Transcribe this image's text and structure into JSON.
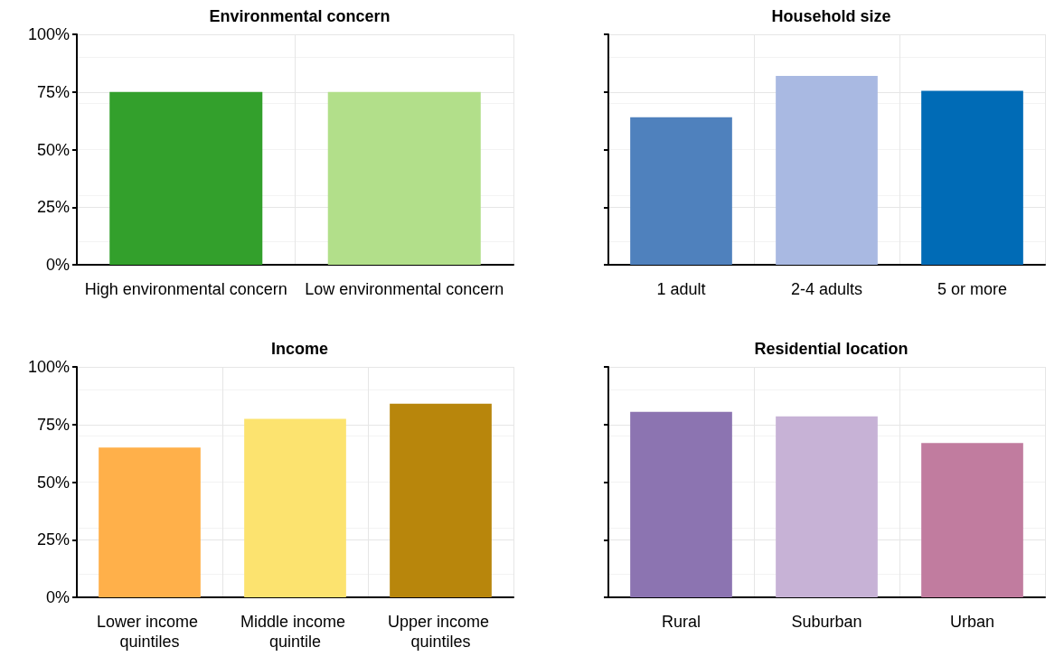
{
  "chart_data": [
    {
      "type": "bar",
      "title": "Environmental concern",
      "categories": [
        "High environmental concern",
        "Low environmental concern"
      ],
      "values": [
        75,
        75
      ],
      "colors": [
        "#33a02c",
        "#b2df8a"
      ],
      "ylim": [
        0,
        100
      ],
      "yticks": [
        {
          "value": 0,
          "label": "0%"
        },
        {
          "value": 25,
          "label": "25%"
        },
        {
          "value": 50,
          "label": "50%"
        },
        {
          "value": 75,
          "label": "75%"
        },
        {
          "value": 100,
          "label": "100%"
        }
      ],
      "grid": true
    },
    {
      "type": "bar",
      "title": "Household size",
      "categories": [
        "1 adult",
        "2-4 adults",
        "5 or more"
      ],
      "values": [
        64,
        82,
        75.5
      ],
      "colors": [
        "#4f81bd",
        "#a9b9e2",
        "#006bb6"
      ],
      "ylim": [
        0,
        100
      ],
      "yticks": [
        {
          "value": 0,
          "label": "0%"
        },
        {
          "value": 25,
          "label": "25%"
        },
        {
          "value": 50,
          "label": "50%"
        },
        {
          "value": 75,
          "label": "75%"
        },
        {
          "value": 100,
          "label": "100%"
        }
      ],
      "grid": true,
      "tick_labels": "x"
    },
    {
      "type": "bar",
      "title": "Income",
      "categories": [
        "Lower income quintiles",
        "Middle income quintile",
        "Upper income quintiles"
      ],
      "values": [
        65,
        77.5,
        84
      ],
      "colors": [
        "#ffb04a",
        "#fce36f",
        "#b8860c"
      ],
      "ylim": [
        0,
        100
      ],
      "yticks": [
        {
          "value": 0,
          "label": "0%"
        },
        {
          "value": 25,
          "label": "25%"
        },
        {
          "value": 50,
          "label": "50%"
        },
        {
          "value": 75,
          "label": "75%"
        },
        {
          "value": 100,
          "label": "100%"
        }
      ],
      "grid": true
    },
    {
      "type": "bar",
      "title": "Residential location",
      "categories": [
        "Rural",
        "Suburban",
        "Urban"
      ],
      "values": [
        80.5,
        78.5,
        67
      ],
      "colors": [
        "#8c74b1",
        "#c7b2d6",
        "#c17c9f"
      ],
      "ylim": [
        0,
        100
      ],
      "yticks": [
        {
          "value": 0,
          "label": "0%"
        },
        {
          "value": 25,
          "label": "25%"
        },
        {
          "value": 50,
          "label": "50%"
        },
        {
          "value": 75,
          "label": "75%"
        },
        {
          "value": 100,
          "label": "100%"
        }
      ],
      "grid": true,
      "tick_labels": "x"
    }
  ]
}
